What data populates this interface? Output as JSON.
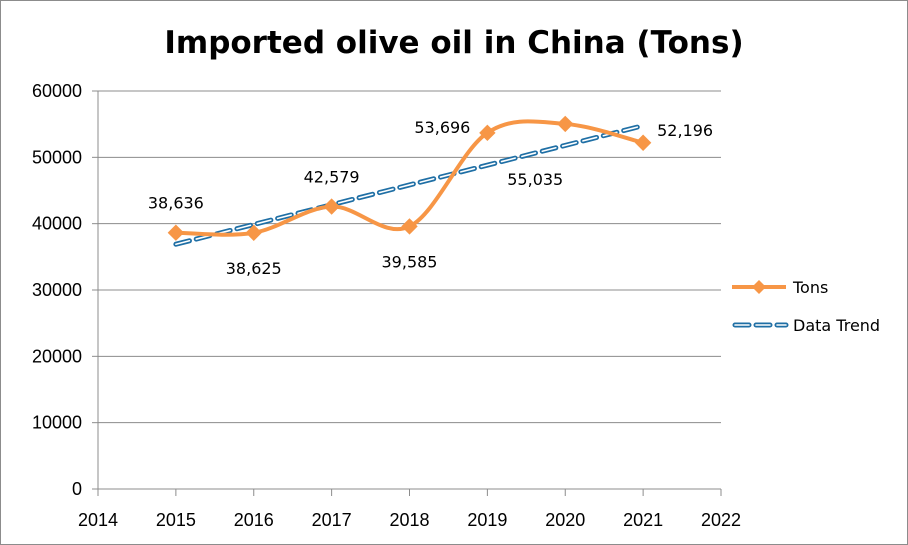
{
  "chart_data": {
    "type": "line",
    "title": "Imported olive oil in China (Tons)",
    "xlabel": "",
    "ylabel": "",
    "x": [
      2015,
      2016,
      2017,
      2018,
      2019,
      2020,
      2021
    ],
    "xlim": [
      2014,
      2022
    ],
    "ylim": [
      0,
      60000
    ],
    "x_ticks": [
      "2014",
      "2015",
      "2016",
      "2017",
      "2018",
      "2019",
      "2020",
      "2021",
      "2022"
    ],
    "y_ticks": [
      "0",
      "10000",
      "20000",
      "30000",
      "40000",
      "50000",
      "60000"
    ],
    "series": [
      {
        "name": "Tons",
        "color": "#f79646",
        "marker": "diamond",
        "smooth": true,
        "values": [
          38636,
          38625,
          42579,
          39585,
          53696,
          55035,
          52196
        ],
        "labels": [
          "38,636",
          "38,625",
          "42,579",
          "39,585",
          "53,696",
          "55,035",
          "52,196"
        ]
      },
      {
        "name": "Data Trend",
        "color": "#1f6fa5",
        "style": "dashed",
        "values": [
          36900,
          39880,
          42860,
          45840,
          48820,
          51800,
          54780
        ]
      }
    ],
    "grid": "horizontal",
    "legend": "right"
  }
}
